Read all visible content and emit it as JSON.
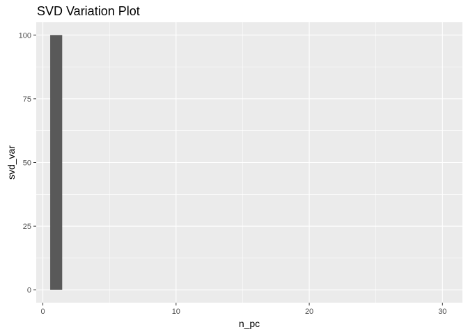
{
  "chart_data": {
    "type": "bar",
    "title": "SVD Variation Plot",
    "xlabel": "n_pc",
    "ylabel": "svd_var",
    "x": [
      1,
      2,
      3,
      4,
      5,
      6,
      7,
      8,
      9,
      10,
      11,
      12,
      13,
      14,
      15,
      16,
      17,
      18,
      19,
      20,
      21,
      22,
      23,
      24,
      25,
      26,
      27,
      28,
      29,
      30
    ],
    "values": [
      100,
      0,
      0,
      0,
      0,
      0,
      0,
      0,
      0,
      0,
      0,
      0,
      0,
      0,
      0,
      0,
      0,
      0,
      0,
      0,
      0,
      0,
      0,
      0,
      0,
      0,
      0,
      0,
      0,
      0
    ],
    "xlim": [
      -0.5,
      31.5
    ],
    "ylim": [
      -5,
      105
    ],
    "x_ticks": [
      0,
      10,
      20,
      30
    ],
    "y_ticks": [
      0,
      25,
      50,
      75,
      100
    ],
    "x_tick_labels": [
      "0",
      "10",
      "20",
      "30"
    ],
    "y_tick_labels": [
      "0",
      "25",
      "50",
      "75",
      "100"
    ],
    "grid": true,
    "legend": "none",
    "colors": {
      "panel": "#ebebeb",
      "grid": "#ffffff",
      "bar": "#595959",
      "tick": "#333333",
      "tick_label": "#4d4d4d"
    }
  }
}
